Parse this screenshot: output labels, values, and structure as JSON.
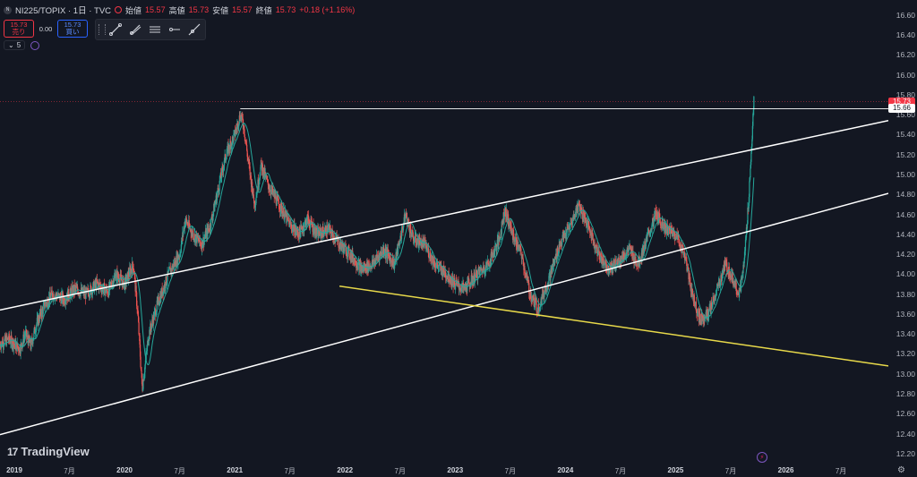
{
  "header": {
    "symbol_icon": "N",
    "symbol": "NI225/TOPIX",
    "interval": "1日",
    "source": "TVC",
    "open_label": "始値",
    "open": "15.57",
    "high_label": "高値",
    "high": "15.73",
    "low_label": "安値",
    "low": "15.57",
    "close_label": "終値",
    "close": "15.73",
    "change": "+0.18 (+1.16%)"
  },
  "trade": {
    "sell_price": "15.73",
    "sell_label": "売り",
    "spread": "0.00",
    "buy_price": "15.73",
    "buy_label": "買い"
  },
  "indicator": {
    "value": "5"
  },
  "logo": {
    "mark": "17",
    "text": "TradingView"
  },
  "price_tags": {
    "last": "15.73",
    "hline": "15.66"
  },
  "colors": {
    "background": "#131722",
    "up": "#26a69a",
    "down": "#ef5350",
    "ma": "#26a69a",
    "channel": "#ffffff",
    "support": "#e8d94a",
    "last": "#f23645"
  },
  "chart_data": {
    "type": "line",
    "title": "NI225/TOPIX · 1日 · TVC",
    "price_ticks": [
      "16.60",
      "16.40",
      "16.20",
      "16.00",
      "15.80",
      "15.60",
      "15.40",
      "15.20",
      "15.00",
      "14.80",
      "14.60",
      "14.40",
      "14.20",
      "14.00",
      "13.80",
      "13.60",
      "13.40",
      "13.20",
      "13.00",
      "12.80",
      "12.60",
      "12.40",
      "12.20"
    ],
    "ylim": [
      12.1,
      16.75
    ],
    "time_ticks": [
      {
        "label": "2019",
        "t": 2019.0,
        "year": true
      },
      {
        "label": "7月",
        "t": 2019.5
      },
      {
        "label": "2020",
        "t": 2020.0,
        "year": true
      },
      {
        "label": "7月",
        "t": 2020.5
      },
      {
        "label": "2021",
        "t": 2021.0,
        "year": true
      },
      {
        "label": "7月",
        "t": 2021.5
      },
      {
        "label": "2022",
        "t": 2022.0,
        "year": true
      },
      {
        "label": "7月",
        "t": 2022.5
      },
      {
        "label": "2023",
        "t": 2023.0,
        "year": true
      },
      {
        "label": "7月",
        "t": 2023.5
      },
      {
        "label": "2024",
        "t": 2024.0,
        "year": true
      },
      {
        "label": "7月",
        "t": 2024.5
      },
      {
        "label": "2025",
        "t": 2025.0,
        "year": true
      },
      {
        "label": "7月",
        "t": 2025.5
      },
      {
        "label": "2026",
        "t": 2026.0,
        "year": true
      },
      {
        "label": "7月",
        "t": 2026.5
      }
    ],
    "xlim": [
      2018.87,
      2026.93
    ],
    "series": [
      {
        "values": [
          [
            2018.87,
            13.3
          ],
          [
            2018.95,
            13.35
          ],
          [
            2019.05,
            13.25
          ],
          [
            2019.1,
            13.4
          ],
          [
            2019.15,
            13.28
          ],
          [
            2019.2,
            13.5
          ],
          [
            2019.28,
            13.7
          ],
          [
            2019.35,
            13.8
          ],
          [
            2019.45,
            13.75
          ],
          [
            2019.55,
            13.85
          ],
          [
            2019.65,
            13.8
          ],
          [
            2019.75,
            13.9
          ],
          [
            2019.85,
            13.82
          ],
          [
            2019.92,
            14.0
          ],
          [
            2020.0,
            13.9
          ],
          [
            2020.08,
            14.1
          ],
          [
            2020.12,
            13.6
          ],
          [
            2020.16,
            12.85
          ],
          [
            2020.22,
            13.4
          ],
          [
            2020.3,
            13.7
          ],
          [
            2020.4,
            14.0
          ],
          [
            2020.5,
            14.2
          ],
          [
            2020.55,
            14.55
          ],
          [
            2020.62,
            14.4
          ],
          [
            2020.7,
            14.3
          ],
          [
            2020.78,
            14.5
          ],
          [
            2020.86,
            14.9
          ],
          [
            2020.92,
            15.2
          ],
          [
            2021.0,
            15.4
          ],
          [
            2021.05,
            15.6
          ],
          [
            2021.08,
            15.5
          ],
          [
            2021.12,
            15.15
          ],
          [
            2021.18,
            14.7
          ],
          [
            2021.24,
            15.1
          ],
          [
            2021.3,
            14.9
          ],
          [
            2021.4,
            14.7
          ],
          [
            2021.5,
            14.5
          ],
          [
            2021.58,
            14.4
          ],
          [
            2021.66,
            14.55
          ],
          [
            2021.75,
            14.4
          ],
          [
            2021.85,
            14.45
          ],
          [
            2021.95,
            14.3
          ],
          [
            2022.05,
            14.2
          ],
          [
            2022.15,
            14.05
          ],
          [
            2022.25,
            14.1
          ],
          [
            2022.35,
            14.25
          ],
          [
            2022.45,
            14.1
          ],
          [
            2022.55,
            14.6
          ],
          [
            2022.62,
            14.35
          ],
          [
            2022.72,
            14.3
          ],
          [
            2022.82,
            14.1
          ],
          [
            2022.92,
            14.0
          ],
          [
            2023.0,
            13.9
          ],
          [
            2023.08,
            13.85
          ],
          [
            2023.2,
            14.0
          ],
          [
            2023.3,
            14.1
          ],
          [
            2023.4,
            14.35
          ],
          [
            2023.45,
            14.65
          ],
          [
            2023.52,
            14.4
          ],
          [
            2023.6,
            14.2
          ],
          [
            2023.68,
            13.8
          ],
          [
            2023.75,
            13.65
          ],
          [
            2023.85,
            13.95
          ],
          [
            2023.95,
            14.3
          ],
          [
            2024.05,
            14.5
          ],
          [
            2024.12,
            14.7
          ],
          [
            2024.2,
            14.5
          ],
          [
            2024.3,
            14.2
          ],
          [
            2024.4,
            14.05
          ],
          [
            2024.5,
            14.15
          ],
          [
            2024.58,
            14.25
          ],
          [
            2024.66,
            14.1
          ],
          [
            2024.74,
            14.35
          ],
          [
            2024.82,
            14.6
          ],
          [
            2024.92,
            14.45
          ],
          [
            2025.0,
            14.4
          ],
          [
            2025.08,
            14.2
          ],
          [
            2025.15,
            13.8
          ],
          [
            2025.22,
            13.55
          ],
          [
            2025.3,
            13.6
          ],
          [
            2025.38,
            13.85
          ],
          [
            2025.45,
            14.1
          ],
          [
            2025.52,
            13.95
          ],
          [
            2025.58,
            13.8
          ],
          [
            2025.62,
            14.1
          ],
          [
            2025.66,
            14.7
          ],
          [
            2025.69,
            15.3
          ],
          [
            2025.71,
            15.73
          ]
        ]
      }
    ],
    "hline": 15.66,
    "trendlines": [
      {
        "name": "upper-channel",
        "from": [
          2018.87,
          13.64
        ],
        "to": [
          2026.93,
          15.54
        ]
      },
      {
        "name": "lower-channel",
        "from": [
          2018.87,
          12.39
        ],
        "to": [
          2026.93,
          14.81
        ]
      },
      {
        "name": "support-line",
        "from": [
          2021.95,
          13.88
        ],
        "to": [
          2026.93,
          13.08
        ]
      }
    ],
    "legend": "none",
    "grid": false
  }
}
